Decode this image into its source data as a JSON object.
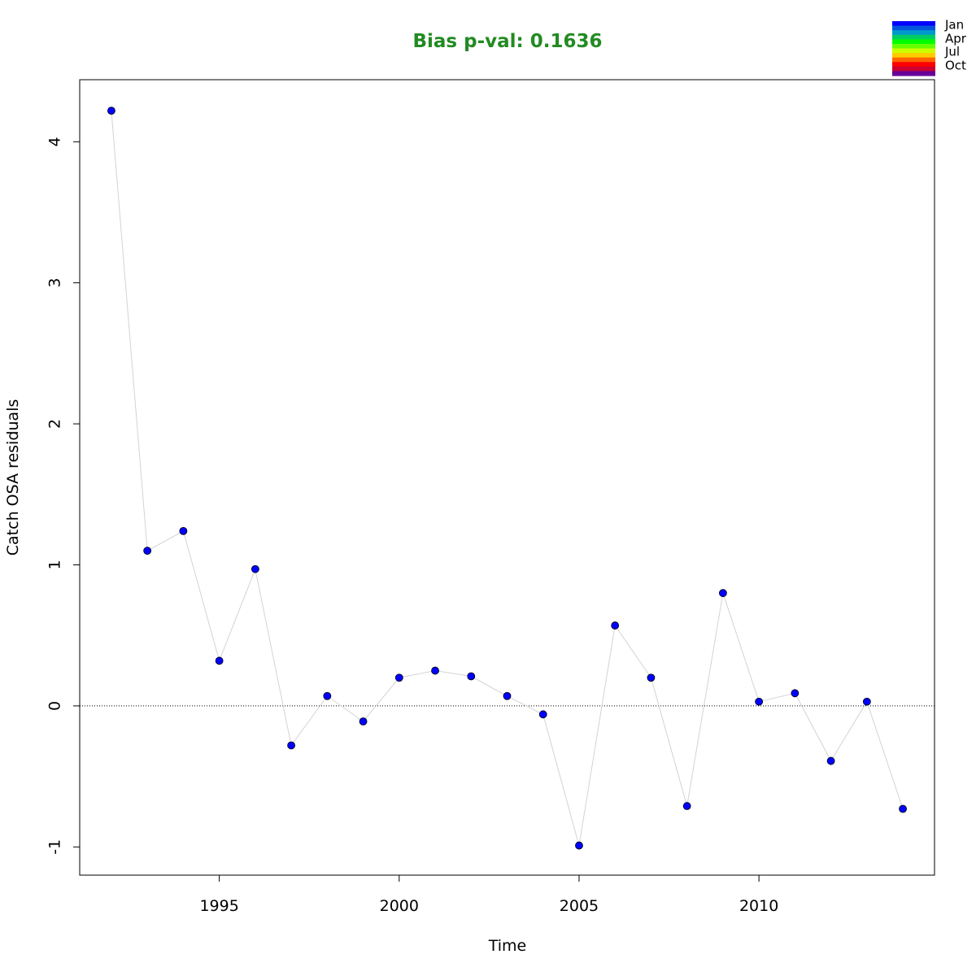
{
  "chart_data": {
    "type": "scatter",
    "title": "Bias p-val: 0.1636",
    "title_color": "#228B22",
    "xlabel": "Time",
    "ylabel": "Catch OSA residuals",
    "xlim": [
      1991.12,
      2014.88
    ],
    "ylim": [
      -1.2,
      4.44
    ],
    "x_ticks": [
      1995,
      2000,
      2005,
      2010
    ],
    "y_ticks": [
      -1,
      0,
      1,
      2,
      3,
      4
    ],
    "reference_line": {
      "y": 0,
      "style": "dotted"
    },
    "grid": false,
    "x": [
      1992,
      1993,
      1994,
      1995,
      1996,
      1997,
      1998,
      1999,
      2000,
      2001,
      2002,
      2003,
      2004,
      2005,
      2006,
      2007,
      2008,
      2009,
      2010,
      2011,
      2012,
      2013,
      2014
    ],
    "y": [
      4.22,
      1.1,
      1.24,
      0.32,
      0.97,
      -0.28,
      0.07,
      -0.11,
      0.2,
      0.25,
      0.21,
      0.07,
      -0.06,
      -0.99,
      0.57,
      0.2,
      -0.71,
      0.8,
      0.03,
      0.09,
      -0.39,
      0.03,
      -0.73
    ],
    "point_color": "#0000FF",
    "line_color": "#D3D3D3",
    "legend": {
      "position": "top-right",
      "labels": [
        "Jan",
        "Apr",
        "Jul",
        "Oct"
      ],
      "colors": [
        "#0000FF",
        "#0055DD",
        "#0099CC",
        "#00CC66",
        "#00FF00",
        "#66FF00",
        "#CCFF00",
        "#FFCC00",
        "#FF6600",
        "#FF0000",
        "#CC0033",
        "#660099"
      ]
    }
  }
}
